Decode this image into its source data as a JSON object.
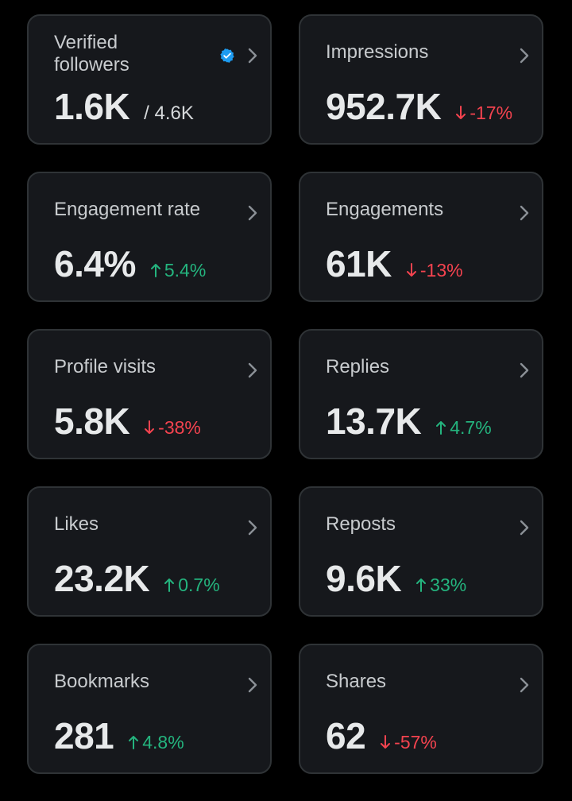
{
  "colors": {
    "background": "#000000",
    "card": "#16181c",
    "card_border": "#2f3336",
    "positive": "#24b47e",
    "negative": "#f4434f",
    "verified": "#1d9bf0"
  },
  "cards": [
    {
      "id": "verified-followers",
      "label_line1": "Verified",
      "label_line2": "followers",
      "value": "1.6K",
      "secondary": "/ 4.6K",
      "icon": "verified-badge-icon"
    },
    {
      "id": "impressions",
      "label": "Impressions",
      "value": "952.7K",
      "change": "-17%",
      "direction": "down"
    },
    {
      "id": "engagement-rate",
      "label": "Engagement rate",
      "value": "6.4%",
      "change": "5.4%",
      "direction": "up"
    },
    {
      "id": "engagements",
      "label": "Engagements",
      "value": "61K",
      "change": "-13%",
      "direction": "down"
    },
    {
      "id": "profile-visits",
      "label": "Profile visits",
      "value": "5.8K",
      "change": "-38%",
      "direction": "down"
    },
    {
      "id": "replies",
      "label": "Replies",
      "value": "13.7K",
      "change": "4.7%",
      "direction": "up"
    },
    {
      "id": "likes",
      "label": "Likes",
      "value": "23.2K",
      "change": "0.7%",
      "direction": "up"
    },
    {
      "id": "reposts",
      "label": "Reposts",
      "value": "9.6K",
      "change": "33%",
      "direction": "up"
    },
    {
      "id": "bookmarks",
      "label": "Bookmarks",
      "value": "281",
      "change": "4.8%",
      "direction": "up"
    },
    {
      "id": "shares",
      "label": "Shares",
      "value": "62",
      "change": "-57%",
      "direction": "down"
    }
  ]
}
